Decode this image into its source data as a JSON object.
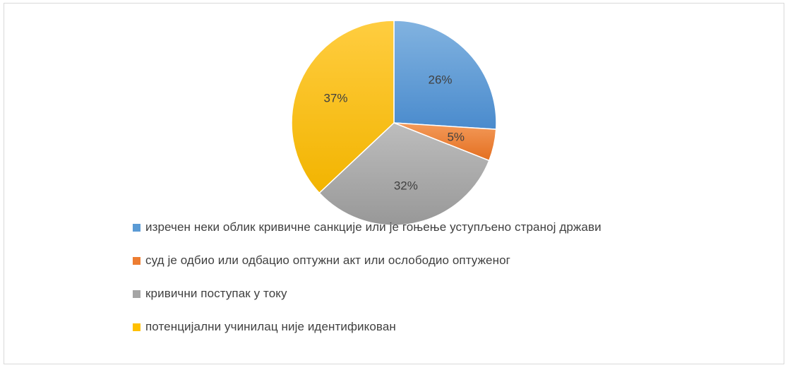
{
  "chart_data": {
    "type": "pie",
    "title": "",
    "slices": [
      {
        "label": "изречен неки облик кривичне санкције или је гоњење уступљено страној држави",
        "value": 26,
        "display": "26%",
        "color": "#5b9bd5"
      },
      {
        "label": "суд је одбио или одбацио оптужни акт или ослободио оптуженог",
        "value": 5,
        "display": "5%",
        "color": "#ed7d31"
      },
      {
        "label": "кривични поступак у току",
        "value": 32,
        "display": "32%",
        "color": "#a5a5a5"
      },
      {
        "label": "потенцијални учинилац није идентификован",
        "value": 37,
        "display": "37%",
        "color": "#ffc000"
      }
    ],
    "legend_position": "bottom-left"
  }
}
